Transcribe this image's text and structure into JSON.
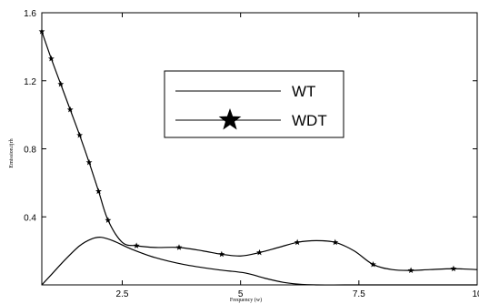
{
  "chart_data": {
    "type": "line",
    "xlabel": "Frequency (w)",
    "ylabel": "Emission.tjrh",
    "xlim": [
      0.8,
      10
    ],
    "ylim": [
      0,
      1.6
    ],
    "x_ticks": [
      2.5,
      5,
      7.5,
      10
    ],
    "x_tick_labels": [
      "2.5",
      "5",
      "7.5",
      "10"
    ],
    "y_ticks": [
      0.4,
      0.8,
      1.2,
      1.6
    ],
    "y_tick_labels": [
      "0.4",
      "0.8",
      "1.2",
      "1.6"
    ],
    "grid": false,
    "legend": {
      "position": "top-center",
      "entries": [
        "WT",
        "WDT"
      ]
    },
    "series": [
      {
        "name": "WT",
        "marker": "none",
        "color": "#000000",
        "x": [
          0.8,
          1.0,
          1.3,
          1.6,
          1.85,
          2.05,
          2.3,
          2.7,
          3.2,
          3.8,
          4.5,
          5.1,
          5.5,
          5.9,
          6.2,
          6.6,
          7.2,
          8.0,
          9.0,
          10.0
        ],
        "y": [
          0.0,
          0.06,
          0.15,
          0.23,
          0.27,
          0.28,
          0.26,
          0.21,
          0.16,
          0.12,
          0.09,
          0.07,
          0.04,
          0.015,
          0.005,
          0.0,
          0.0,
          0.0,
          0.0,
          0.0
        ]
      },
      {
        "name": "WDT",
        "marker": "star",
        "color": "#000000",
        "x": [
          0.8,
          1.0,
          1.2,
          1.4,
          1.6,
          1.8,
          2.0,
          2.2,
          2.5,
          2.8,
          3.2,
          3.7,
          4.2,
          4.6,
          5.0,
          5.4,
          5.8,
          6.2,
          6.6,
          7.0,
          7.4,
          7.8,
          8.2,
          8.6,
          9.0,
          9.5,
          10.0
        ],
        "y": [
          1.49,
          1.33,
          1.18,
          1.03,
          0.88,
          0.72,
          0.55,
          0.38,
          0.25,
          0.23,
          0.22,
          0.22,
          0.2,
          0.18,
          0.17,
          0.19,
          0.22,
          0.25,
          0.26,
          0.25,
          0.2,
          0.12,
          0.09,
          0.085,
          0.09,
          0.095,
          0.09
        ],
        "marker_x": [
          0.8,
          1.0,
          1.2,
          1.4,
          1.6,
          1.8,
          2.0,
          2.2,
          2.8,
          3.7,
          4.6,
          5.4,
          6.2,
          7.0,
          7.8,
          8.6,
          9.5
        ]
      }
    ]
  }
}
